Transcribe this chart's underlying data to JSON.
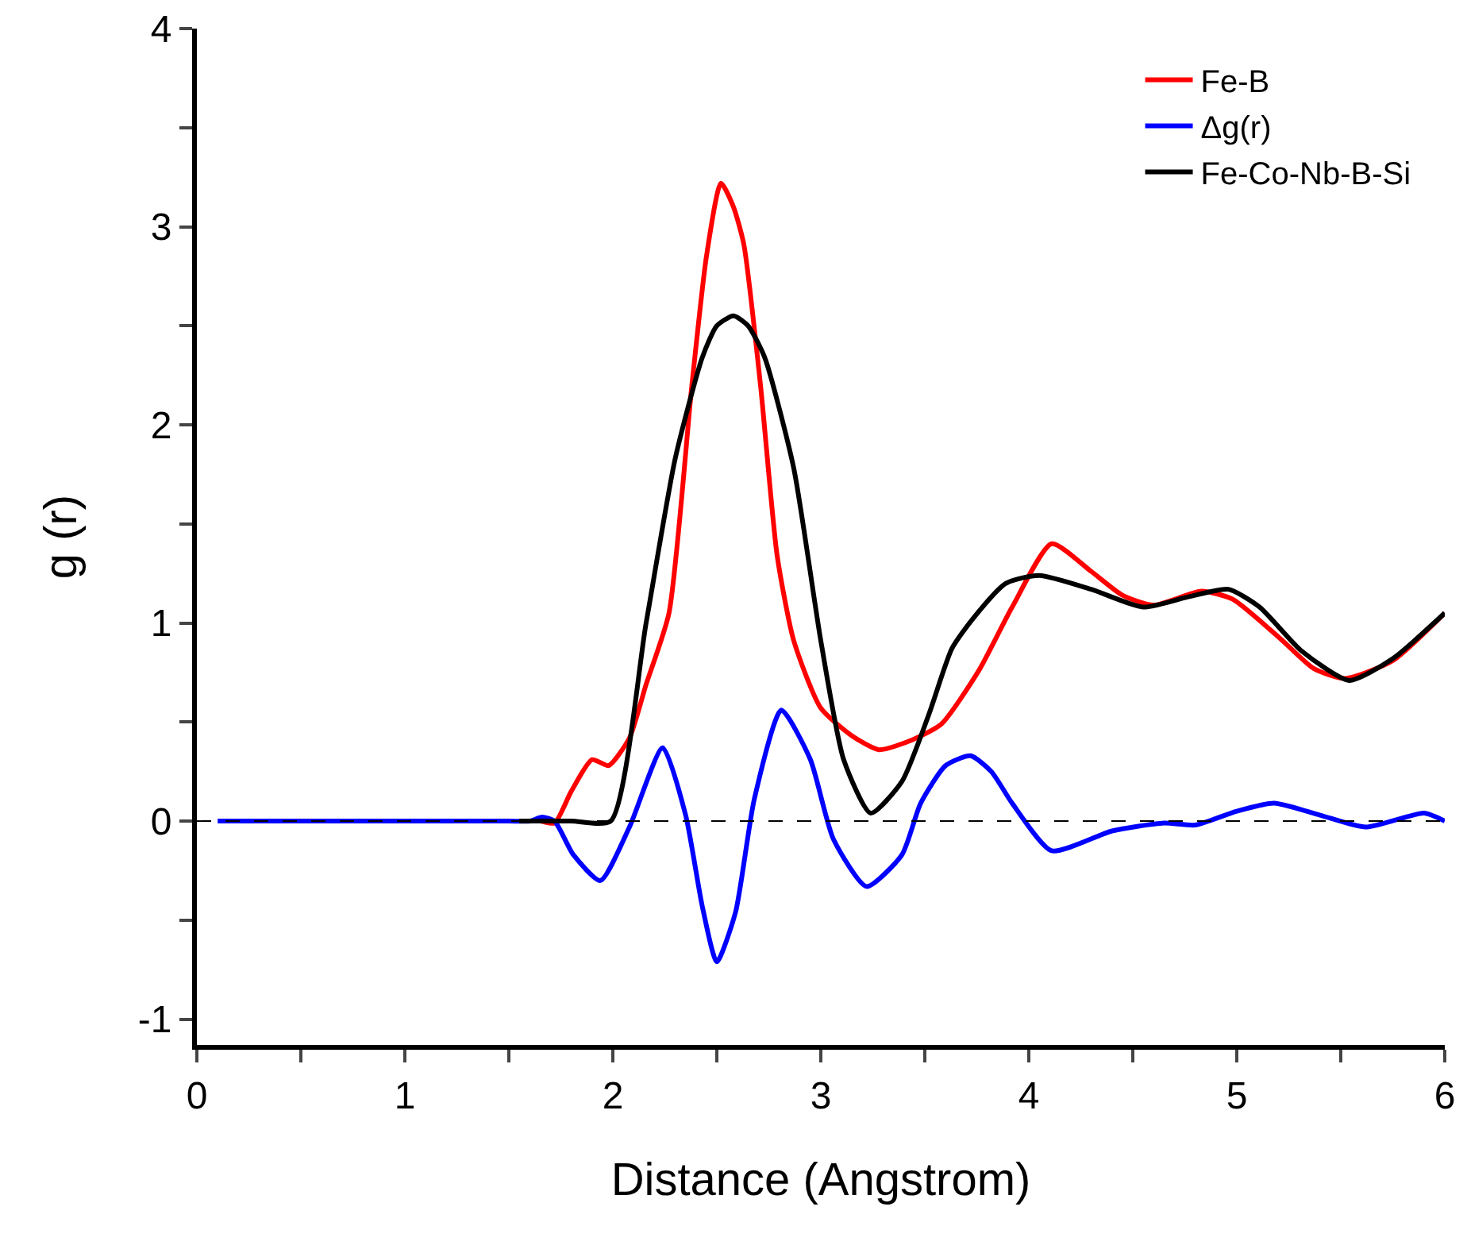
{
  "chart_data": {
    "type": "line",
    "xlabel": "Distance (Angstrom)",
    "ylabel": "g (r)",
    "xlim": [
      0,
      6
    ],
    "ylim": [
      -1.13,
      4
    ],
    "xticks": [
      0,
      {
        "value": 0.5,
        "label": null
      },
      1,
      {
        "value": 1.5,
        "label": null
      },
      2,
      {
        "value": 2.5,
        "label": null
      },
      3,
      {
        "value": 3.5,
        "label": null
      },
      4,
      {
        "value": 4.5,
        "label": null
      },
      5,
      {
        "value": 5.5,
        "label": null
      },
      6
    ],
    "yticks": [
      -1,
      {
        "value": -0.5,
        "label": null
      },
      0,
      {
        "value": 0.5,
        "label": null
      },
      1,
      {
        "value": 1.5,
        "label": null
      },
      2,
      {
        "value": 2.5,
        "label": null
      },
      3,
      {
        "value": 3.5,
        "label": null
      },
      4
    ],
    "grid": false,
    "legend": "top right",
    "marker": "none",
    "line_style": "solid",
    "ref_lines": [
      {
        "axis": "y",
        "value": 0,
        "label": null,
        "color": "#000000",
        "line_style": "dashed"
      }
    ],
    "series": [
      {
        "name": "Fe-B",
        "color": "#ff0000",
        "x": [
          1.55,
          1.65,
          1.72,
          1.8,
          1.9,
          1.98,
          2.08,
          2.16,
          2.27,
          2.38,
          2.45,
          2.52,
          2.58,
          2.63,
          2.71,
          2.79,
          2.87,
          3.0,
          3.15,
          3.28,
          3.44,
          3.58,
          3.76,
          3.92,
          4.11,
          4.3,
          4.45,
          4.6,
          4.83,
          4.98,
          5.21,
          5.37,
          5.52,
          5.75,
          6
        ],
        "values": [
          0,
          0,
          -0.01,
          0.15,
          0.31,
          0.28,
          0.42,
          0.69,
          1.05,
          2.2,
          2.85,
          3.22,
          3.1,
          2.91,
          2.2,
          1.34,
          0.91,
          0.57,
          0.43,
          0.36,
          0.41,
          0.49,
          0.76,
          1.08,
          1.4,
          1.26,
          1.14,
          1.09,
          1.16,
          1.12,
          0.92,
          0.77,
          0.72,
          0.81,
          1.05
        ]
      },
      {
        "name": "Δg(r)",
        "color": "#0000ff",
        "x": [
          0.1,
          0.5,
          1,
          1.5,
          1.6,
          1.66,
          1.72,
          1.81,
          1.94,
          2.08,
          2.24,
          2.35,
          2.43,
          2.5,
          2.59,
          2.68,
          2.81,
          2.95,
          3.06,
          3.22,
          3.39,
          3.48,
          3.6,
          3.72,
          3.82,
          3.92,
          4.11,
          4.4,
          4.65,
          4.8,
          5.0,
          5.18,
          5.4,
          5.62,
          5.9,
          6
        ],
        "values": [
          0,
          0,
          0,
          0,
          0,
          0.02,
          0,
          -0.17,
          -0.3,
          -0.03,
          0.37,
          0.03,
          -0.43,
          -0.71,
          -0.46,
          0.11,
          0.56,
          0.31,
          -0.09,
          -0.33,
          -0.17,
          0.09,
          0.28,
          0.33,
          0.25,
          0.09,
          -0.15,
          -0.05,
          -0.01,
          -0.02,
          0.05,
          0.09,
          0.03,
          -0.03,
          0.04,
          0
        ]
      },
      {
        "name": "Fe-Co-Nb-B-Si",
        "color": "#000000",
        "x": [
          1.55,
          1.8,
          1.99,
          2.16,
          2.3,
          2.43,
          2.5,
          2.58,
          2.65,
          2.73,
          2.87,
          3.0,
          3.11,
          3.24,
          3.39,
          3.52,
          3.63,
          3.73,
          3.89,
          4.05,
          4.3,
          4.55,
          4.76,
          4.96,
          5.11,
          5.31,
          5.54,
          5.75,
          6
        ],
        "values": [
          0,
          0,
          0,
          1.0,
          1.83,
          2.34,
          2.5,
          2.55,
          2.5,
          2.34,
          1.78,
          0.91,
          0.31,
          0.04,
          0.2,
          0.54,
          0.87,
          1.02,
          1.2,
          1.24,
          1.17,
          1.08,
          1.13,
          1.17,
          1.08,
          0.86,
          0.71,
          0.82,
          1.05
        ]
      }
    ]
  }
}
